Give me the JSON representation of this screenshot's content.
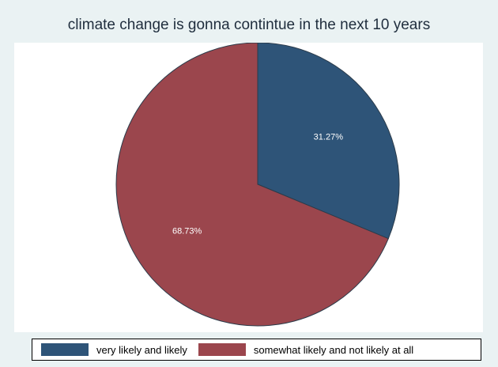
{
  "chart_data": {
    "type": "pie",
    "title": "climate change is gonna contintue in the next 10 years",
    "slices": [
      {
        "label": "very likely and likely",
        "value": 31.27,
        "display": "31.27%",
        "color": "#2e5478"
      },
      {
        "label": "somewhat likely and not likely at all",
        "value": 68.73,
        "display": "68.73%",
        "color": "#9b464d"
      }
    ],
    "start_angle_deg": 0,
    "direction": "clockwise",
    "legend_position": "bottom"
  },
  "colors": {
    "background": "#eaf2f3",
    "plot_background": "#ffffff",
    "slice_edge": "#2b3b4a"
  }
}
